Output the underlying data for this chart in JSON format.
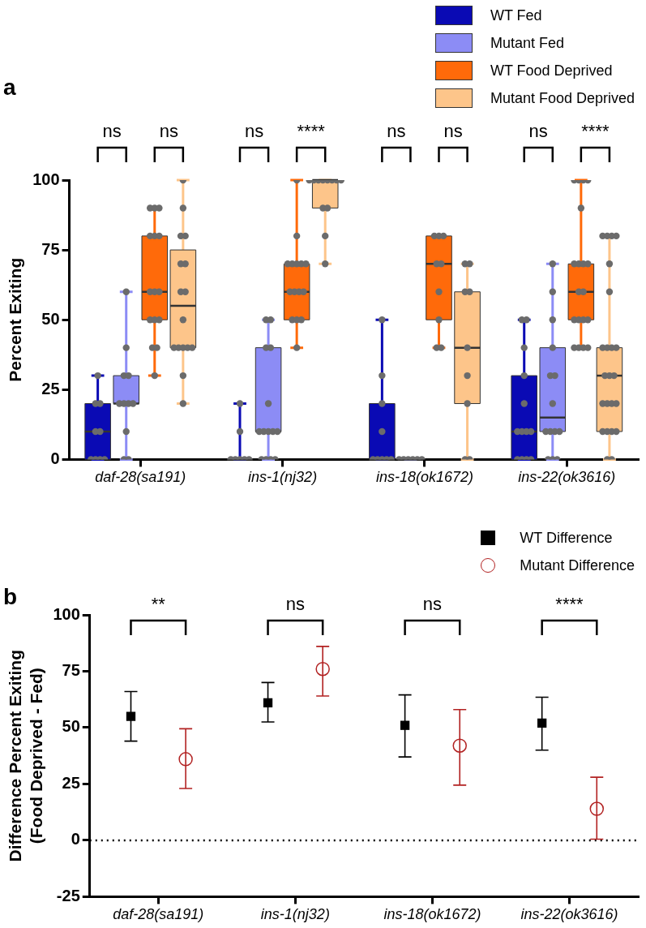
{
  "chart_data": [
    {
      "type": "box",
      "title": "a",
      "ylabel": "Percent Exiting",
      "categories": [
        "daf-28(sa191)",
        "ins-1(nj32)",
        "ins-18(ok1672)",
        "ins-22(ok3616)"
      ],
      "ylim": [
        0,
        100
      ],
      "yticks": [
        0,
        25,
        50,
        75,
        100
      ],
      "legend": "top right",
      "marker": "circle",
      "series": [
        {
          "name": "WT Fed",
          "color": "#0a0ab4",
          "boxes": [
            {
              "low": 0,
              "q1": 0,
              "median": 10,
              "q3": 20,
              "high": 30
            },
            {
              "low": 0,
              "q1": 0,
              "median": 0,
              "q3": 0,
              "high": 20
            },
            {
              "low": 0,
              "q1": 0,
              "median": 0,
              "q3": 20,
              "high": 50
            },
            {
              "low": 0,
              "q1": 0,
              "median": 10,
              "q3": 30,
              "high": 50
            }
          ]
        },
        {
          "name": "Mutant Fed",
          "color": "#8c8cf5",
          "boxes": [
            {
              "low": 0,
              "q1": 20,
              "median": 20,
              "q3": 30,
              "high": 60
            },
            {
              "low": 0,
              "q1": 10,
              "median": 10,
              "q3": 40,
              "high": 50
            },
            {
              "low": 0,
              "q1": 0,
              "median": 0,
              "q3": 0,
              "high": 0
            },
            {
              "low": 0,
              "q1": 10,
              "median": 15,
              "q3": 40,
              "high": 70
            }
          ]
        },
        {
          "name": "WT Food Deprived",
          "color": "#ff6a0a",
          "boxes": [
            {
              "low": 30,
              "q1": 50,
              "median": 60,
              "q3": 80,
              "high": 90
            },
            {
              "low": 40,
              "q1": 50,
              "median": 60,
              "q3": 70,
              "high": 100
            },
            {
              "low": 40,
              "q1": 50,
              "median": 70,
              "q3": 80,
              "high": 80
            },
            {
              "low": 40,
              "q1": 50,
              "median": 60,
              "q3": 70,
              "high": 100
            }
          ]
        },
        {
          "name": "Mutant Food Deprived",
          "color": "#fdc58a",
          "boxes": [
            {
              "low": 20,
              "q1": 40,
              "median": 55,
              "q3": 75,
              "high": 100
            },
            {
              "low": 70,
              "q1": 90,
              "median": 100,
              "q3": 100,
              "high": 100
            },
            {
              "low": 0,
              "q1": 20,
              "median": 40,
              "q3": 60,
              "high": 70
            },
            {
              "low": 0,
              "q1": 10,
              "median": 30,
              "q3": 40,
              "high": 80
            }
          ]
        },
        {
          "type": "scatter",
          "color": "#6b6b6b",
          "x": [
            "daf-28(sa191)",
            "daf-28(sa191)",
            "daf-28(sa191)",
            "daf-28(sa191)",
            "daf-28(sa191)",
            "daf-28(sa191)",
            "daf-28(sa191)",
            "daf-28(sa191)",
            "daf-28(sa191)",
            "ins-1(nj32)",
            "ins-1(nj32)",
            "ins-1(nj32)",
            "ins-1(nj32)",
            "ins-1(nj32)",
            "ins-1(nj32)",
            "ins-1(nj32)",
            "ins-18(ok1672)",
            "ins-18(ok1672)",
            "ins-18(ok1672)",
            "ins-18(ok1672)",
            "ins-18(ok1672)",
            "ins-18(ok1672)",
            "ins-18(ok1672)",
            "ins-18(ok1672)",
            "ins-18(ok1672)",
            "ins-22(ok3616)",
            "ins-22(ok3616)",
            "ins-22(ok3616)",
            "ins-22(ok3616)",
            "ins-22(ok3616)",
            "ins-22(ok3616)",
            "ins-22(ok3616)",
            "ins-22(ok3616)",
            "ins-22(ok3616)",
            "ins-22(ok3616)",
            "ins-22(ok3616)",
            "ins-22(ok3616)",
            "ins-22(ok3616)"
          ],
          "values": [
            0,
            0,
            0,
            0,
            10,
            10,
            20,
            20,
            30,
            0,
            0,
            0,
            0,
            0,
            10,
            20,
            0,
            0,
            0,
            0,
            0,
            10,
            20,
            30,
            50,
            0,
            0,
            0,
            0,
            10,
            10,
            10,
            10,
            20,
            30,
            40,
            50,
            50
          ]
        },
        {
          "type": "scatter",
          "color": "#6b6b6b",
          "x": [
            "daf-28(sa191)",
            "daf-28(sa191)",
            "daf-28(sa191)",
            "daf-28(sa191)",
            "daf-28(sa191)",
            "daf-28(sa191)",
            "daf-28(sa191)",
            "daf-28(sa191)",
            "daf-28(sa191)",
            "daf-28(sa191)",
            "daf-28(sa191)",
            "ins-1(nj32)",
            "ins-1(nj32)",
            "ins-1(nj32)",
            "ins-1(nj32)",
            "ins-1(nj32)",
            "ins-1(nj32)",
            "ins-1(nj32)",
            "ins-1(nj32)",
            "ins-1(nj32)",
            "ins-1(nj32)",
            "ins-1(nj32)",
            "ins-1(nj32)",
            "ins-1(nj32)",
            "ins-1(nj32)",
            "ins-18(ok1672)",
            "ins-18(ok1672)",
            "ins-18(ok1672)",
            "ins-18(ok1672)",
            "ins-18(ok1672)",
            "ins-18(ok1672)",
            "ins-22(ok3616)",
            "ins-22(ok3616)",
            "ins-22(ok3616)",
            "ins-22(ok3616)",
            "ins-22(ok3616)",
            "ins-22(ok3616)",
            "ins-22(ok3616)",
            "ins-22(ok3616)",
            "ins-22(ok3616)",
            "ins-22(ok3616)",
            "ins-22(ok3616)",
            "ins-22(ok3616)",
            "ins-22(ok3616)",
            "ins-22(ok3616)"
          ],
          "values": [
            0,
            0,
            10,
            20,
            20,
            20,
            20,
            30,
            30,
            40,
            60,
            0,
            0,
            0,
            0,
            10,
            10,
            10,
            10,
            10,
            20,
            40,
            40,
            50,
            50,
            0,
            0,
            0,
            0,
            0,
            0,
            0,
            0,
            0,
            10,
            10,
            10,
            10,
            20,
            30,
            30,
            40,
            50,
            60,
            70
          ]
        },
        {
          "type": "scatter",
          "color": "#6b6b6b",
          "x": [
            "daf-28(sa191)",
            "daf-28(sa191)",
            "daf-28(sa191)",
            "daf-28(sa191)",
            "daf-28(sa191)",
            "daf-28(sa191)",
            "daf-28(sa191)",
            "daf-28(sa191)",
            "daf-28(sa191)",
            "daf-28(sa191)",
            "daf-28(sa191)",
            "daf-28(sa191)",
            "daf-28(sa191)",
            "daf-28(sa191)",
            "daf-28(sa191)",
            "ins-1(nj32)",
            "ins-1(nj32)",
            "ins-1(nj32)",
            "ins-1(nj32)",
            "ins-1(nj32)",
            "ins-1(nj32)",
            "ins-1(nj32)",
            "ins-1(nj32)",
            "ins-1(nj32)",
            "ins-1(nj32)",
            "ins-1(nj32)",
            "ins-1(nj32)",
            "ins-1(nj32)",
            "ins-1(nj32)",
            "ins-1(nj32)",
            "ins-18(ok1672)",
            "ins-18(ok1672)",
            "ins-18(ok1672)",
            "ins-18(ok1672)",
            "ins-18(ok1672)",
            "ins-18(ok1672)",
            "ins-18(ok1672)",
            "ins-18(ok1672)",
            "ins-18(ok1672)",
            "ins-22(ok3616)",
            "ins-22(ok3616)",
            "ins-22(ok3616)",
            "ins-22(ok3616)",
            "ins-22(ok3616)",
            "ins-22(ok3616)",
            "ins-22(ok3616)",
            "ins-22(ok3616)",
            "ins-22(ok3616)",
            "ins-22(ok3616)",
            "ins-22(ok3616)",
            "ins-22(ok3616)",
            "ins-22(ok3616)",
            "ins-22(ok3616)",
            "ins-22(ok3616)",
            "ins-22(ok3616)",
            "ins-22(ok3616)",
            "ins-22(ok3616)",
            "ins-22(ok3616)"
          ],
          "values": [
            30,
            40,
            40,
            50,
            50,
            50,
            60,
            60,
            60,
            80,
            80,
            80,
            90,
            90,
            90,
            40,
            50,
            50,
            50,
            60,
            60,
            60,
            60,
            70,
            70,
            70,
            70,
            70,
            80,
            100,
            40,
            40,
            50,
            60,
            70,
            70,
            80,
            80,
            80,
            40,
            40,
            40,
            40,
            50,
            50,
            50,
            50,
            60,
            60,
            70,
            70,
            70,
            70,
            90,
            100,
            100,
            100,
            100
          ]
        },
        {
          "type": "scatter",
          "color": "#6b6b6b",
          "x": [
            "daf-28(sa191)",
            "daf-28(sa191)",
            "daf-28(sa191)",
            "daf-28(sa191)",
            "daf-28(sa191)",
            "daf-28(sa191)",
            "daf-28(sa191)",
            "daf-28(sa191)",
            "daf-28(sa191)",
            "daf-28(sa191)",
            "daf-28(sa191)",
            "daf-28(sa191)",
            "daf-28(sa191)",
            "daf-28(sa191)",
            "daf-28(sa191)",
            "daf-28(sa191)",
            "ins-1(nj32)",
            "ins-1(nj32)",
            "ins-1(nj32)",
            "ins-1(nj32)",
            "ins-1(nj32)",
            "ins-1(nj32)",
            "ins-1(nj32)",
            "ins-1(nj32)",
            "ins-1(nj32)",
            "ins-1(nj32)",
            "ins-1(nj32)",
            "ins-1(nj32)",
            "ins-18(ok1672)",
            "ins-18(ok1672)",
            "ins-18(ok1672)",
            "ins-18(ok1672)",
            "ins-18(ok1672)",
            "ins-18(ok1672)",
            "ins-18(ok1672)",
            "ins-18(ok1672)",
            "ins-18(ok1672)",
            "ins-22(ok3616)",
            "ins-22(ok3616)",
            "ins-22(ok3616)",
            "ins-22(ok3616)",
            "ins-22(ok3616)",
            "ins-22(ok3616)",
            "ins-22(ok3616)",
            "ins-22(ok3616)",
            "ins-22(ok3616)",
            "ins-22(ok3616)",
            "ins-22(ok3616)",
            "ins-22(ok3616)",
            "ins-22(ok3616)",
            "ins-22(ok3616)",
            "ins-22(ok3616)",
            "ins-22(ok3616)",
            "ins-22(ok3616)",
            "ins-22(ok3616)",
            "ins-22(ok3616)",
            "ins-22(ok3616)",
            "ins-22(ok3616)",
            "ins-22(ok3616)",
            "ins-22(ok3616)"
          ],
          "values": [
            20,
            30,
            40,
            40,
            40,
            40,
            40,
            50,
            60,
            60,
            70,
            70,
            80,
            80,
            90,
            100,
            70,
            80,
            90,
            90,
            100,
            100,
            100,
            100,
            100,
            100,
            100,
            100,
            0,
            0,
            20,
            30,
            40,
            60,
            60,
            70,
            70,
            0,
            0,
            10,
            10,
            10,
            10,
            20,
            20,
            20,
            20,
            30,
            30,
            30,
            40,
            40,
            40,
            40,
            60,
            70,
            80,
            80,
            80,
            80
          ]
        }
      ],
      "annotations": [
        "ns",
        "ns",
        "ns",
        "****",
        "ns",
        "ns",
        "ns",
        "****"
      ]
    },
    {
      "type": "scatter",
      "title": "b",
      "ylabel": "Difference Percent Exiting\n(Food Deprived - Fed)",
      "categories": [
        "daf-28(sa191)",
        "ins-1(nj32)",
        "ins-18(ok1672)",
        "ins-22(ok3616)"
      ],
      "ylim": [
        -25,
        100
      ],
      "yticks": [
        -25,
        0,
        25,
        50,
        75,
        100
      ],
      "legend": "top right",
      "series": [
        {
          "name": "WT Difference",
          "color": "#000000",
          "marker": "square",
          "values": [
            55,
            61,
            51,
            52
          ],
          "errors": [
            [
              44,
              66
            ],
            [
              52.5,
              70
            ],
            [
              37,
              64.5
            ],
            [
              40,
              63.5
            ]
          ]
        },
        {
          "name": "Mutant Difference",
          "color": "#b22222",
          "marker": "circle",
          "values": [
            36,
            76,
            42,
            14
          ],
          "errors": [
            [
              23,
              49.5
            ],
            [
              64,
              86
            ],
            [
              24.5,
              58
            ],
            [
              0.5,
              28
            ]
          ]
        }
      ],
      "ref_lines": [
        {
          "axis": "y",
          "value": 0,
          "color": "#000000",
          "line_style": "dotted"
        }
      ],
      "annotations": [
        "**",
        "ns",
        "ns",
        "****"
      ]
    }
  ]
}
